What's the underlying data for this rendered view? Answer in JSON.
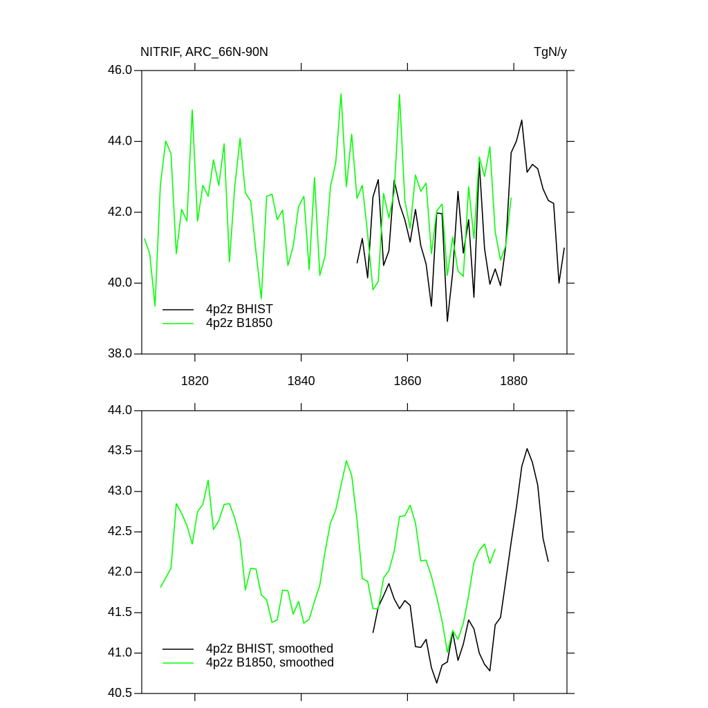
{
  "chart_data": [
    {
      "type": "line",
      "title": "NITRIF, ARC_66N-90N",
      "units": "TgN/y",
      "xlim": [
        1810,
        1890
      ],
      "xticks": [
        1820,
        1840,
        1860,
        1880
      ],
      "show_xtick_labels": true,
      "ylim": [
        38,
        46
      ],
      "yticks": [
        {
          "value": 38,
          "label": "38.0"
        },
        {
          "value": 40,
          "label": "40.0"
        },
        {
          "value": 42,
          "label": "42.0"
        },
        {
          "value": 44,
          "label": "44.0"
        },
        {
          "value": 46,
          "label": "46.0"
        }
      ],
      "legend": "lower left",
      "series": [
        {
          "name": "4p2z BHIST",
          "color": "#000000",
          "x": [
            1850.5,
            1851.5,
            1852.5,
            1853.5,
            1854.5,
            1855.5,
            1856.5,
            1857.5,
            1858.5,
            1859.5,
            1860.5,
            1861.5,
            1862.5,
            1863.5,
            1864.5,
            1865.5,
            1866.5,
            1867.5,
            1868.5,
            1869.5,
            1870.5,
            1871.5,
            1872.5,
            1873.5,
            1874.5,
            1875.5,
            1876.5,
            1877.5,
            1878.5,
            1879.5,
            1880.5,
            1881.5,
            1882.5,
            1883.5,
            1884.5,
            1885.5,
            1886.5,
            1887.5,
            1888.5,
            1889.5
          ],
          "values": [
            40.56,
            41.26,
            40.15,
            42.43,
            42.92,
            40.5,
            40.91,
            42.9,
            42.23,
            41.79,
            41.16,
            42.08,
            41.06,
            40.54,
            39.35,
            41.98,
            41.96,
            38.92,
            40.3,
            42.59,
            40.85,
            41.79,
            39.6,
            43.42,
            40.97,
            39.97,
            40.4,
            39.93,
            41.06,
            43.68,
            44.01,
            44.6,
            43.13,
            43.35,
            43.23,
            42.66,
            42.33,
            42.25,
            40.0,
            41.0
          ]
        },
        {
          "name": "4p2z B1850",
          "color": "#00ff00",
          "x": [
            1810.5,
            1811.5,
            1812.5,
            1813.5,
            1814.5,
            1815.5,
            1816.5,
            1817.5,
            1818.5,
            1819.5,
            1820.5,
            1821.5,
            1822.5,
            1823.5,
            1824.5,
            1825.5,
            1826.5,
            1827.5,
            1828.5,
            1829.5,
            1830.5,
            1831.5,
            1832.5,
            1833.5,
            1834.5,
            1835.5,
            1836.5,
            1837.5,
            1838.5,
            1839.5,
            1840.5,
            1841.5,
            1842.5,
            1843.5,
            1844.5,
            1845.5,
            1846.5,
            1847.5,
            1848.5,
            1849.5,
            1850.5,
            1851.5,
            1852.5,
            1853.5,
            1854.5,
            1855.5,
            1856.5,
            1857.5,
            1858.5,
            1859.5,
            1860.5,
            1861.5,
            1862.5,
            1863.5,
            1864.5,
            1865.5,
            1866.5,
            1867.5,
            1868.5,
            1869.5,
            1870.5,
            1871.5,
            1872.5,
            1873.5,
            1874.5,
            1875.5,
            1876.5,
            1877.5,
            1878.5,
            1879.5
          ],
          "values": [
            41.26,
            40.83,
            39.35,
            42.76,
            44.01,
            43.66,
            40.83,
            42.08,
            41.75,
            44.89,
            41.75,
            42.76,
            42.45,
            43.48,
            42.76,
            43.93,
            40.6,
            42.72,
            44.09,
            42.55,
            42.31,
            40.87,
            39.56,
            42.45,
            42.51,
            41.79,
            42.06,
            40.5,
            41.04,
            42.16,
            42.45,
            40.38,
            42.98,
            40.22,
            40.77,
            42.72,
            43.4,
            45.34,
            42.72,
            44.2,
            42.39,
            42.76,
            41.38,
            39.81,
            40.05,
            42.53,
            41.84,
            42.57,
            45.32,
            42.33,
            41.55,
            43.05,
            42.59,
            42.82,
            40.83,
            42.04,
            42.23,
            40.22,
            41.3,
            40.34,
            40.19,
            42.72,
            41.26,
            43.56,
            43.01,
            43.85,
            41.45,
            40.65,
            41.06,
            42.41
          ]
        }
      ]
    },
    {
      "type": "line",
      "xlim": [
        1810,
        1890
      ],
      "xticks": [
        1820,
        1840,
        1860,
        1880
      ],
      "show_xtick_labels": false,
      "ylim": [
        40.5,
        44
      ],
      "yticks": [
        40.5,
        {
          "value": 41,
          "label": "41.0"
        },
        41.5,
        {
          "value": 42,
          "label": "42.0"
        },
        42.5,
        {
          "value": 43,
          "label": "43.0"
        },
        43.5,
        {
          "value": 44,
          "label": "44.0"
        }
      ],
      "legend": "lower left",
      "series": [
        {
          "name": "4p2z BHIST, smoothed",
          "color": "#000000",
          "x": [
            1853.5,
            1854.5,
            1855.5,
            1856.5,
            1857.5,
            1858.5,
            1859.5,
            1860.5,
            1861.5,
            1862.5,
            1863.5,
            1864.5,
            1865.5,
            1866.5,
            1867.5,
            1868.5,
            1869.5,
            1870.5,
            1871.5,
            1872.5,
            1873.5,
            1874.5,
            1875.5,
            1876.5,
            1877.5,
            1878.5,
            1879.5,
            1880.5,
            1881.5,
            1882.5,
            1883.5,
            1884.5,
            1885.5,
            1886.5
          ],
          "values": [
            41.25,
            41.57,
            41.71,
            41.86,
            41.67,
            41.55,
            41.65,
            41.59,
            41.08,
            41.07,
            41.17,
            40.82,
            40.63,
            40.85,
            40.89,
            41.26,
            40.91,
            41.11,
            41.41,
            41.3,
            41.0,
            40.86,
            40.78,
            41.35,
            41.44,
            41.9,
            42.37,
            42.81,
            43.31,
            43.53,
            43.36,
            43.08,
            42.42,
            42.13
          ]
        },
        {
          "name": "4p2z B1850, smoothed",
          "color": "#00ff00",
          "x": [
            1813.5,
            1814.5,
            1815.5,
            1816.5,
            1817.5,
            1818.5,
            1819.5,
            1820.5,
            1821.5,
            1822.5,
            1823.5,
            1824.5,
            1825.5,
            1826.5,
            1827.5,
            1828.5,
            1829.5,
            1830.5,
            1831.5,
            1832.5,
            1833.5,
            1834.5,
            1835.5,
            1836.5,
            1837.5,
            1838.5,
            1839.5,
            1840.5,
            1841.5,
            1842.5,
            1843.5,
            1844.5,
            1845.5,
            1846.5,
            1847.5,
            1848.5,
            1849.5,
            1850.5,
            1851.5,
            1852.5,
            1853.5,
            1854.5,
            1855.5,
            1856.5,
            1857.5,
            1858.5,
            1859.5,
            1860.5,
            1861.5,
            1862.5,
            1863.5,
            1864.5,
            1865.5,
            1866.5,
            1867.5,
            1868.5,
            1869.5,
            1870.5,
            1871.5,
            1872.5,
            1873.5,
            1874.5,
            1875.5,
            1876.5
          ],
          "values": [
            41.81,
            41.93,
            42.05,
            42.85,
            42.73,
            42.58,
            42.35,
            42.75,
            42.84,
            43.14,
            42.53,
            42.64,
            42.84,
            42.85,
            42.67,
            42.41,
            41.78,
            42.05,
            42.04,
            41.72,
            41.66,
            41.38,
            41.41,
            41.78,
            41.77,
            41.48,
            41.64,
            41.37,
            41.42,
            41.64,
            41.84,
            42.26,
            42.61,
            42.77,
            43.08,
            43.38,
            43.2,
            42.65,
            41.92,
            41.89,
            41.55,
            41.55,
            41.93,
            42.02,
            42.26,
            42.69,
            42.7,
            42.83,
            42.61,
            42.14,
            42.15,
            41.95,
            41.69,
            41.4,
            41.01,
            41.28,
            41.17,
            41.37,
            41.71,
            42.12,
            42.27,
            42.35,
            42.11,
            42.29
          ]
        }
      ]
    }
  ]
}
